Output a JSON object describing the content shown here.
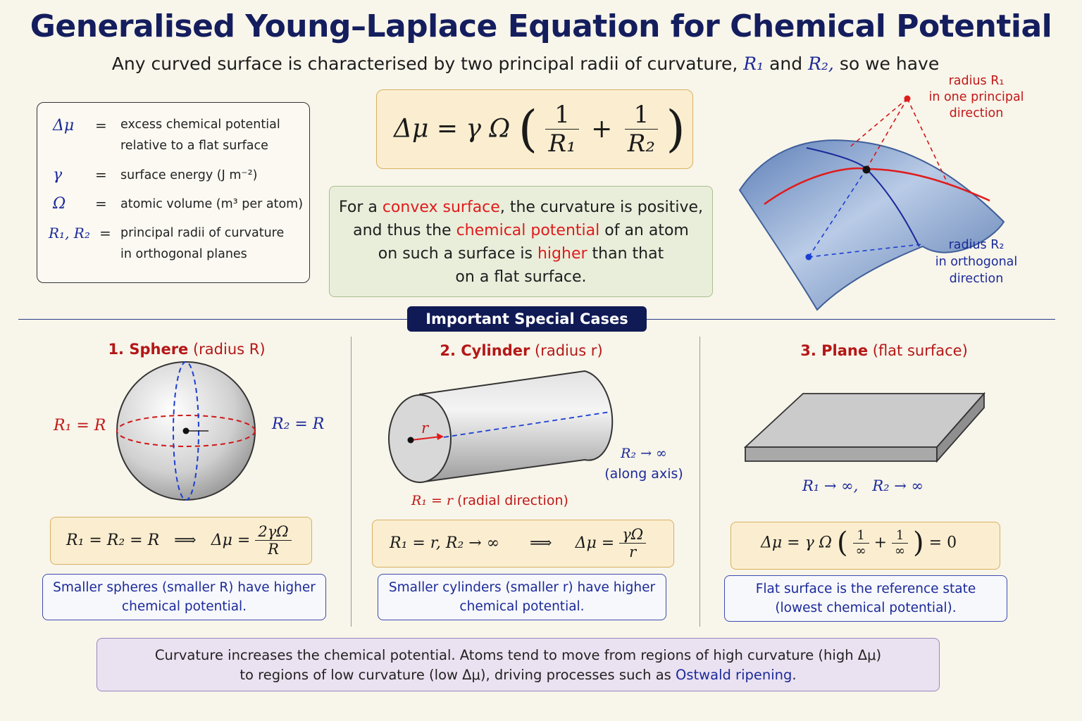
{
  "header": {
    "title": "Generalised Young–Laplace Equation for Chemical Potential",
    "subtitle_pre": "Any curved surface is characterised by two principal radii of curvature,",
    "subtitle_r1": "R₁",
    "subtitle_and": "and",
    "subtitle_r2": "R₂,",
    "subtitle_post": "so we have"
  },
  "definitions": [
    {
      "symbol": "Δμ",
      "eq": "=",
      "text_1": "excess chemical potential",
      "text_2": "relative to a flat surface"
    },
    {
      "symbol": "γ",
      "eq": "=",
      "text_1": "surface energy (J m⁻²)"
    },
    {
      "symbol": "Ω",
      "eq": "=",
      "text_1": "atomic volume (m³ per atom)"
    },
    {
      "symbol": "R₁, R₂",
      "eq": "=",
      "text_1": "principal radii of curvature",
      "text_2": "in orthogonal planes"
    }
  ],
  "main_equation": {
    "lhs": "Δμ = γ Ω",
    "one": "1",
    "r1": "R₁",
    "plus": "+",
    "r2": "R₂"
  },
  "convex_note": {
    "l1_a": "For a ",
    "l1_b": "convex surface",
    "l1_c": ", the curvature is positive,",
    "l2_a": "and thus the ",
    "l2_b": "chemical potential",
    "l2_c": " of an atom",
    "l3_a": "on such a surface is ",
    "l3_b": "higher",
    "l3_c": " than that",
    "l4": "on a flat surface."
  },
  "surface_diagram": {
    "r1_label_1": "radius R₁",
    "r1_label_2": "in one principal",
    "r1_label_3": "direction",
    "r2_label_1": "radius R₂",
    "r2_label_2": "in orthogonal",
    "r2_label_3": "direction"
  },
  "section_label": "Important Special Cases",
  "cases": [
    {
      "title_bold": "1.  Sphere",
      "title_rest": " (radius R)",
      "left_label": "R₁ = R",
      "right_label": "R₂ = R",
      "formula_lhs": "R₁ = R₂ = R",
      "implies": "⟹",
      "formula_mid": "Δμ =",
      "num": "2γΩ",
      "den": "R",
      "note_1": "Smaller spheres (smaller R) have higher",
      "note_2": "chemical potential."
    },
    {
      "title_bold": "2.  Cylinder",
      "title_rest": " (radius r)",
      "r_label": "r",
      "axis_label_1": "R₂ → ∞",
      "axis_label_2": "(along axis)",
      "radial_label_a": "R₁ = r",
      "radial_label_b": " (radial direction)",
      "formula_lhs": "R₁ = r,  R₂ → ∞",
      "implies": "⟹",
      "formula_mid": "Δμ =",
      "num": "γΩ",
      "den": "r",
      "note_1": "Smaller cylinders (smaller r) have higher",
      "note_2": "chemical potential."
    },
    {
      "title_bold": "3.  Plane",
      "title_rest": " (flat surface)",
      "limits_label": "R₁ → ∞,   R₂ → ∞",
      "formula_lhs": "Δμ = γ Ω",
      "one": "1",
      "inf": "∞",
      "plus": "+",
      "result": "= 0",
      "note_1": "Flat surface is the reference state",
      "note_2": "(lowest chemical potential)."
    }
  ],
  "summary": {
    "line_1": "Curvature increases the chemical potential. Atoms tend to move from regions of high curvature (high Δμ)",
    "line_2_a": "to regions of low curvature (low Δμ), driving processes such as ",
    "line_2_b": "Ostwald ripening",
    "line_2_c": "."
  },
  "colors": {
    "title": "#141e5e",
    "accent_red": "#c01818",
    "accent_blue": "#1b2a9a",
    "formula_bg": "#fbeed0",
    "pill": "#101a55"
  }
}
